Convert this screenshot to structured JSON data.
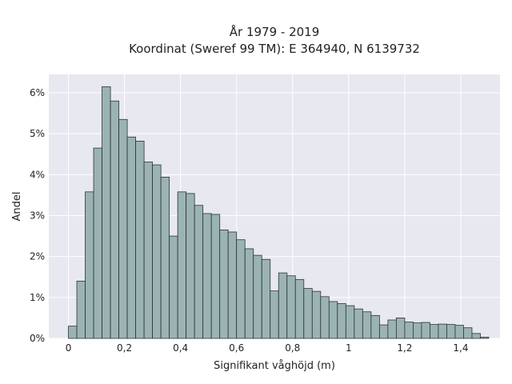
{
  "chart_data": {
    "type": "bar",
    "title_lines": [
      "År 1979 - 2019",
      "Koordinat (Sweref 99 TM): E 364940, N 6139732"
    ],
    "xlabel": "Signifikant våghöjd (m)",
    "ylabel": "Andel",
    "xlim": [
      -0.07,
      1.54
    ],
    "ylim": [
      0,
      0.0645
    ],
    "x_ticks": [
      0,
      0.2,
      0.4,
      0.6,
      0.8,
      1.0,
      1.2,
      1.4
    ],
    "x_tick_labels": [
      "0",
      "0,2",
      "0,4",
      "0,6",
      "0,8",
      "1",
      "1,2",
      "1,4"
    ],
    "y_ticks": [
      0,
      0.01,
      0.02,
      0.03,
      0.04,
      0.05,
      0.06
    ],
    "y_tick_labels": [
      "0%",
      "1%",
      "2%",
      "3%",
      "4%",
      "5%",
      "6%"
    ],
    "bin_start": 0,
    "bin_width": 0.03,
    "values": [
      0.003,
      0.014,
      0.0358,
      0.0465,
      0.0615,
      0.058,
      0.0535,
      0.0492,
      0.0482,
      0.0431,
      0.0424,
      0.0394,
      0.025,
      0.0358,
      0.0354,
      0.0325,
      0.0305,
      0.0303,
      0.0265,
      0.026,
      0.0241,
      0.0219,
      0.0203,
      0.0193,
      0.0116,
      0.016,
      0.0153,
      0.0144,
      0.0122,
      0.0115,
      0.0102,
      0.009,
      0.0085,
      0.008,
      0.0072,
      0.0065,
      0.0056,
      0.0033,
      0.0045,
      0.005,
      0.004,
      0.0038,
      0.0039,
      0.0034,
      0.0035,
      0.0034,
      0.0032,
      0.0026,
      0.0012,
      0.0003
    ],
    "grid": true,
    "legend": "none",
    "colors": {
      "bar_fill": "#9bb3b3",
      "bar_edge": "#2a3535",
      "plot_background": "#e8e8f0"
    }
  }
}
